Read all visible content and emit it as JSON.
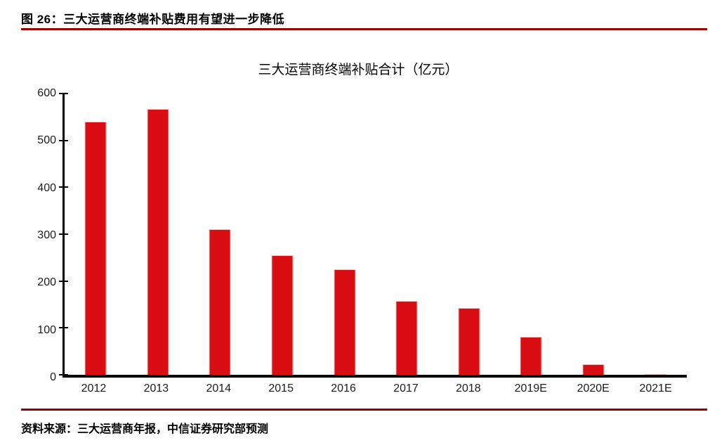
{
  "header": {
    "figure_label": "图 26：三大运营商终端补贴费用有望进一步降低"
  },
  "chart_data": {
    "type": "bar",
    "title": "三大运营商终端补贴合计（亿元）",
    "categories": [
      "2012",
      "2013",
      "2014",
      "2015",
      "2016",
      "2017",
      "2018",
      "2019E",
      "2020E",
      "2021E"
    ],
    "values": [
      540,
      567,
      310,
      255,
      225,
      158,
      143,
      81,
      22,
      2
    ],
    "xlabel": "",
    "ylabel": "",
    "ylim": [
      0,
      600
    ],
    "yticks": [
      0,
      100,
      200,
      300,
      400,
      500,
      600
    ],
    "grid": false,
    "legend_position": "none",
    "bar_color": "#d90d12",
    "bar_border_color": "#f2bdbd"
  },
  "footer": {
    "source": "资料来源：三大运营商年报，中信证券研究部预测"
  },
  "colors": {
    "rule_red": "#990000",
    "axis_black": "#000000",
    "tick_text": "#1a1a1a"
  }
}
